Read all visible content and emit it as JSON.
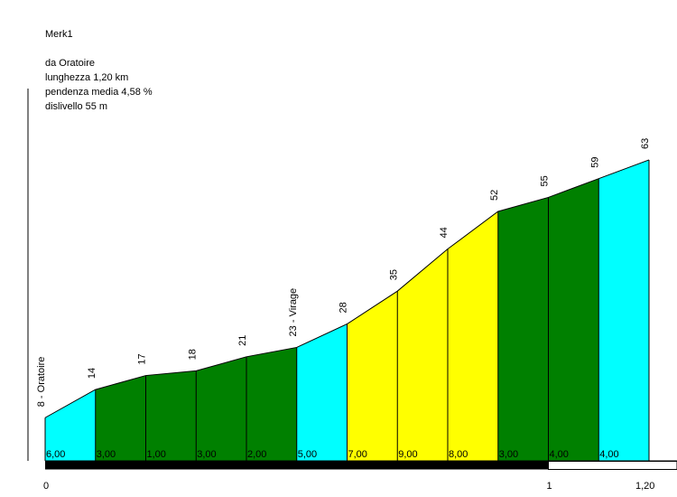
{
  "header": {
    "name": "Merk1",
    "from": "da Oratoire",
    "length": "lunghezza 1,20 km",
    "gradient": "pendenza media 4,58 %",
    "elevation_gain": "dislivello 55 m"
  },
  "chart_data": {
    "type": "area",
    "title": "Merk1",
    "xlabel": "",
    "ylabel": "",
    "x_unit": "km",
    "x_range": [
      0,
      1.2
    ],
    "x_ticks": [
      {
        "value": 0,
        "label": "0"
      },
      {
        "value": 1.0,
        "label": "1"
      },
      {
        "value": 1.2,
        "label": "1,20"
      }
    ],
    "points": [
      {
        "x": 0.0,
        "elevation": 8,
        "label": "8 - Oratoire"
      },
      {
        "x": 0.1,
        "elevation": 14,
        "label": "14"
      },
      {
        "x": 0.2,
        "elevation": 17,
        "label": "17"
      },
      {
        "x": 0.3,
        "elevation": 18,
        "label": "18"
      },
      {
        "x": 0.4,
        "elevation": 21,
        "label": "21"
      },
      {
        "x": 0.5,
        "elevation": 23,
        "label": "23 - Virage"
      },
      {
        "x": 0.6,
        "elevation": 28,
        "label": "28"
      },
      {
        "x": 0.7,
        "elevation": 35,
        "label": "35"
      },
      {
        "x": 0.8,
        "elevation": 44,
        "label": "44"
      },
      {
        "x": 0.9,
        "elevation": 52,
        "label": "52"
      },
      {
        "x": 1.0,
        "elevation": 55,
        "label": "55"
      },
      {
        "x": 1.1,
        "elevation": 59,
        "label": "59"
      },
      {
        "x": 1.2,
        "elevation": 63,
        "label": "63"
      }
    ],
    "segments": [
      {
        "gradient": "6,00",
        "color": "#00ffff"
      },
      {
        "gradient": "3,00",
        "color": "#008000"
      },
      {
        "gradient": "1,00",
        "color": "#008000"
      },
      {
        "gradient": "3,00",
        "color": "#008000"
      },
      {
        "gradient": "2,00",
        "color": "#008000"
      },
      {
        "gradient": "5,00",
        "color": "#00ffff"
      },
      {
        "gradient": "7,00",
        "color": "#ffff00"
      },
      {
        "gradient": "9,00",
        "color": "#ffff00"
      },
      {
        "gradient": "8,00",
        "color": "#ffff00"
      },
      {
        "gradient": "3,00",
        "color": "#008000"
      },
      {
        "gradient": "4,00",
        "color": "#008000"
      },
      {
        "gradient": "4,00",
        "color": "#00ffff"
      }
    ],
    "km_bar": {
      "filled_color": "#000000",
      "empty_color": "#ffffff"
    }
  }
}
